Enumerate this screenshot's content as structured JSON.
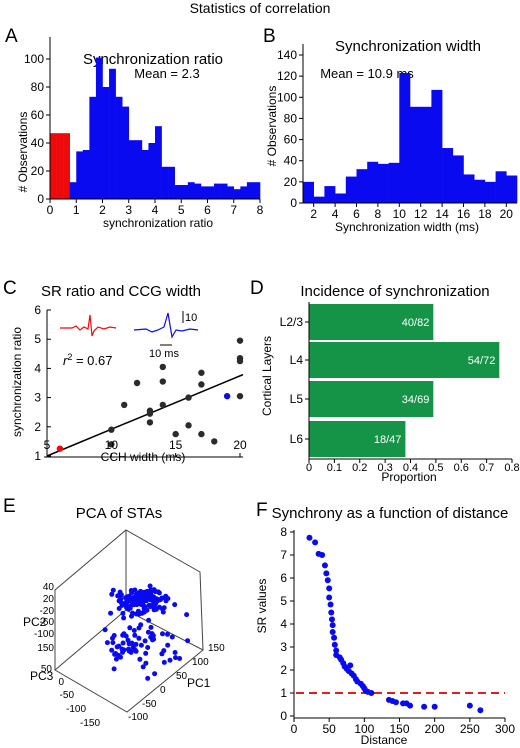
{
  "figure_title": "Statistics of correlation",
  "colors": {
    "blue": "#0a0af0",
    "red": "#ee0a0a",
    "green": "#159447",
    "dark": "#2b2b2b",
    "dashed_red": "#e02020"
  },
  "chart_data": [
    {
      "panel": "A",
      "type": "bar",
      "title": "Synchronization ratio",
      "annotation": "Mean = 2.3",
      "xlabel": "synchronization ratio",
      "ylabel": "# Observations",
      "xlim": [
        0,
        8
      ],
      "ylim": [
        0,
        100
      ],
      "xticks": [
        0,
        1,
        2,
        3,
        4,
        5,
        6,
        7,
        8
      ],
      "yticks": [
        0,
        20,
        40,
        60,
        80,
        100
      ],
      "bin_width": 0.25,
      "series": [
        {
          "color": "red",
          "bins": [
            {
              "x": 0.0,
              "value": 47
            },
            {
              "x": 0.25,
              "value": 47
            },
            {
              "x": 0.5,
              "value": 47
            }
          ]
        },
        {
          "color": "blue",
          "bins": [
            {
              "x": 0.75,
              "value": 12
            },
            {
              "x": 1.0,
              "value": 34
            },
            {
              "x": 1.25,
              "value": 35
            },
            {
              "x": 1.5,
              "value": 73
            },
            {
              "x": 1.75,
              "value": 101
            },
            {
              "x": 2.0,
              "value": 80
            },
            {
              "x": 2.25,
              "value": 93
            },
            {
              "x": 2.5,
              "value": 73
            },
            {
              "x": 2.75,
              "value": 66
            },
            {
              "x": 3.0,
              "value": 42
            },
            {
              "x": 3.25,
              "value": 42
            },
            {
              "x": 3.5,
              "value": 35
            },
            {
              "x": 3.75,
              "value": 40
            },
            {
              "x": 4.0,
              "value": 52
            },
            {
              "x": 4.25,
              "value": 23
            },
            {
              "x": 4.5,
              "value": 23
            },
            {
              "x": 4.75,
              "value": 10
            },
            {
              "x": 5.0,
              "value": 10
            },
            {
              "x": 5.25,
              "value": 12
            },
            {
              "x": 5.5,
              "value": 11
            },
            {
              "x": 5.75,
              "value": 9
            },
            {
              "x": 6.0,
              "value": 9
            },
            {
              "x": 6.25,
              "value": 11
            },
            {
              "x": 6.5,
              "value": 11
            },
            {
              "x": 6.75,
              "value": 9
            },
            {
              "x": 7.0,
              "value": 7
            },
            {
              "x": 7.25,
              "value": 9
            },
            {
              "x": 7.5,
              "value": 12
            },
            {
              "x": 7.75,
              "value": 12
            }
          ]
        }
      ]
    },
    {
      "panel": "B",
      "type": "bar",
      "title": "Synchronization width",
      "annotation": "Mean = 10.9 ms",
      "xlabel": "Synchronization width (ms)",
      "ylabel": "# Observations",
      "xlim": [
        1,
        21
      ],
      "ylim": [
        0,
        140
      ],
      "xticks": [
        2,
        4,
        6,
        8,
        10,
        12,
        14,
        16,
        18,
        20
      ],
      "yticks": [
        0,
        20,
        40,
        60,
        80,
        100,
        120,
        140
      ],
      "bin_width": 1,
      "series": [
        {
          "color": "blue",
          "bins": [
            {
              "x": 1.5,
              "value": 20
            },
            {
              "x": 2.5,
              "value": 6
            },
            {
              "x": 3.5,
              "value": 16
            },
            {
              "x": 4.5,
              "value": 9
            },
            {
              "x": 5.5,
              "value": 25
            },
            {
              "x": 6.5,
              "value": 32
            },
            {
              "x": 7.5,
              "value": 39
            },
            {
              "x": 8.5,
              "value": 37
            },
            {
              "x": 9.5,
              "value": 38
            },
            {
              "x": 10.5,
              "value": 123
            },
            {
              "x": 11.5,
              "value": 91
            },
            {
              "x": 12.5,
              "value": 91
            },
            {
              "x": 13.5,
              "value": 107
            },
            {
              "x": 14.5,
              "value": 52
            },
            {
              "x": 15.5,
              "value": 45
            },
            {
              "x": 16.5,
              "value": 27
            },
            {
              "x": 17.5,
              "value": 22
            },
            {
              "x": 18.5,
              "value": 20
            },
            {
              "x": 19.5,
              "value": 30
            },
            {
              "x": 20.5,
              "value": 26
            }
          ]
        }
      ]
    },
    {
      "panel": "C",
      "type": "scatter",
      "title": "SR ratio and CCG width",
      "xlabel": "CCH width (ms)",
      "ylabel": "synchronization ratio",
      "xlim": [
        5,
        20
      ],
      "ylim": [
        1,
        6
      ],
      "xticks": [
        5,
        10,
        15,
        20
      ],
      "yticks": [
        1,
        2,
        3,
        4,
        5,
        6
      ],
      "annotation_r2_symbol": "r",
      "annotation_r2_sup": "2",
      "annotation_r2_value": " = 0.67",
      "inset_scale_y": "10",
      "inset_scale_x": "10 ms",
      "regression": [
        [
          5,
          1.0
        ],
        [
          20,
          3.75
        ]
      ],
      "points": [
        {
          "x": 6,
          "y": 1.25,
          "color": "red"
        },
        {
          "x": 10,
          "y": 1.4
        },
        {
          "x": 10,
          "y": 1.9
        },
        {
          "x": 11,
          "y": 2.75
        },
        {
          "x": 12,
          "y": 3.5
        },
        {
          "x": 13,
          "y": 2.15
        },
        {
          "x": 13,
          "y": 2.45
        },
        {
          "x": 13,
          "y": 2.55
        },
        {
          "x": 14,
          "y": 2.75
        },
        {
          "x": 14,
          "y": 3.55
        },
        {
          "x": 14,
          "y": 4.05
        },
        {
          "x": 15,
          "y": 1.75
        },
        {
          "x": 16,
          "y": 2.05
        },
        {
          "x": 16,
          "y": 3.0
        },
        {
          "x": 17,
          "y": 1.75
        },
        {
          "x": 17,
          "y": 3.45
        },
        {
          "x": 17,
          "y": 3.85
        },
        {
          "x": 18,
          "y": 1.5
        },
        {
          "x": 19,
          "y": 3.05,
          "color": "blue"
        },
        {
          "x": 20,
          "y": 3.05
        },
        {
          "x": 20,
          "y": 4.25
        },
        {
          "x": 20,
          "y": 4.35
        },
        {
          "x": 20,
          "y": 4.95
        }
      ]
    },
    {
      "panel": "D",
      "type": "bar",
      "orientation": "horizontal",
      "title": "Incidence of synchronization",
      "xlabel": "Proportion",
      "ylabel": "Cortical Layers",
      "xlim": [
        0,
        0.8
      ],
      "xticks": [
        "0",
        "0.1",
        "0.2",
        "0.3",
        "0.4",
        "0.5",
        "0.6",
        "0.7",
        "0.8"
      ],
      "categories": [
        "L2/3",
        "L4",
        "L5",
        "L6"
      ],
      "values": [
        0.49,
        0.75,
        0.49,
        0.38
      ],
      "data_labels": [
        "40/82",
        "54/72",
        "34/69",
        "18/47"
      ]
    },
    {
      "panel": "E",
      "type": "scatter",
      "subtype": "3d",
      "title": "PCA of STAs",
      "axis_labels": [
        "PC1",
        "PC2",
        "PC3"
      ],
      "pc2_ticks": [
        "40",
        "20",
        "-20",
        "-60",
        "-100",
        "150"
      ],
      "pc3_ticks": [
        "50",
        "0",
        "-50",
        "-100",
        "-150"
      ],
      "pc1_ticks": [
        "150",
        "100",
        "50",
        "0",
        "-50",
        "-100"
      ]
    },
    {
      "panel": "F",
      "type": "scatter",
      "title": "Synchrony as a function of distance",
      "xlabel": "Distance",
      "ylabel": "SR values",
      "xlim": [
        0,
        300
      ],
      "ylim": [
        0,
        8
      ],
      "xticks": [
        0,
        50,
        100,
        150,
        200,
        250,
        300
      ],
      "yticks": [
        0,
        1,
        2,
        3,
        4,
        5,
        6,
        7,
        8
      ],
      "reference_line": 1,
      "points": [
        {
          "x": 22,
          "y": 7.75
        },
        {
          "x": 30,
          "y": 7.55
        },
        {
          "x": 35,
          "y": 7.05
        },
        {
          "x": 40,
          "y": 7.0
        },
        {
          "x": 44,
          "y": 6.55
        },
        {
          "x": 46,
          "y": 6.2
        },
        {
          "x": 48,
          "y": 5.9
        },
        {
          "x": 50,
          "y": 5.55
        },
        {
          "x": 50,
          "y": 5.15
        },
        {
          "x": 52,
          "y": 4.85
        },
        {
          "x": 53,
          "y": 4.5
        },
        {
          "x": 54,
          "y": 4.2
        },
        {
          "x": 55,
          "y": 3.95
        },
        {
          "x": 55,
          "y": 3.65
        },
        {
          "x": 57,
          "y": 3.4
        },
        {
          "x": 58,
          "y": 3.1
        },
        {
          "x": 60,
          "y": 2.85
        },
        {
          "x": 60,
          "y": 2.65
        },
        {
          "x": 65,
          "y": 2.55
        },
        {
          "x": 67,
          "y": 2.45
        },
        {
          "x": 70,
          "y": 2.3
        },
        {
          "x": 72,
          "y": 2.15
        },
        {
          "x": 75,
          "y": 2.05
        },
        {
          "x": 78,
          "y": 1.95
        },
        {
          "x": 80,
          "y": 2.2
        },
        {
          "x": 82,
          "y": 1.85
        },
        {
          "x": 85,
          "y": 1.75
        },
        {
          "x": 88,
          "y": 1.6
        },
        {
          "x": 90,
          "y": 1.5
        },
        {
          "x": 95,
          "y": 1.4
        },
        {
          "x": 98,
          "y": 1.3
        },
        {
          "x": 100,
          "y": 1.2
        },
        {
          "x": 102,
          "y": 1.1
        },
        {
          "x": 105,
          "y": 1.05
        },
        {
          "x": 110,
          "y": 1.0
        },
        {
          "x": 135,
          "y": 0.7
        },
        {
          "x": 140,
          "y": 0.65
        },
        {
          "x": 145,
          "y": 0.6
        },
        {
          "x": 155,
          "y": 0.55
        },
        {
          "x": 160,
          "y": 0.55
        },
        {
          "x": 165,
          "y": 0.45
        },
        {
          "x": 185,
          "y": 0.4
        },
        {
          "x": 200,
          "y": 0.4
        },
        {
          "x": 250,
          "y": 0.45
        },
        {
          "x": 265,
          "y": 0.25
        }
      ]
    }
  ]
}
